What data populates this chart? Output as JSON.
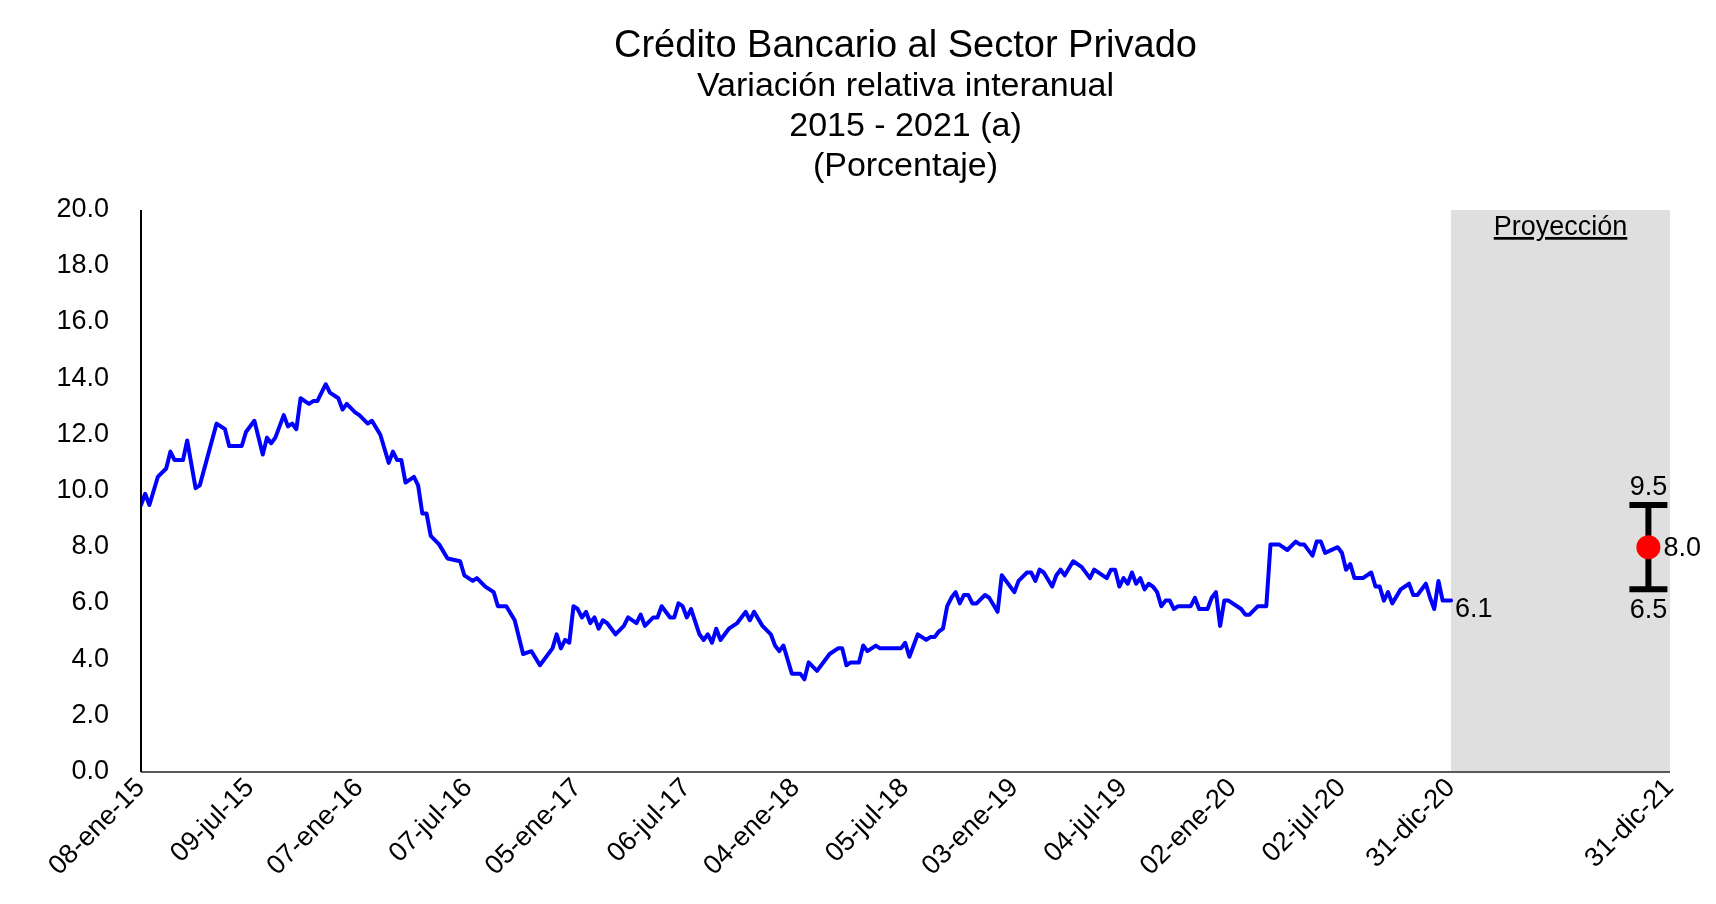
{
  "chart_data": {
    "type": "line",
    "title": "Crédito Bancario al Sector Privado",
    "subtitle": "Variación relativa interanual\n2015 - 2021 (a)\n(Porcentaje)",
    "xlim": [
      "2015-01-08",
      "2021-12-31"
    ],
    "xticks": [
      {
        "value": "2015-01-08",
        "label": "08-ene-15"
      },
      {
        "value": "2015-07-09",
        "label": "09-jul-15"
      },
      {
        "value": "2016-01-07",
        "label": "07-ene-16"
      },
      {
        "value": "2016-07-07",
        "label": "07-jul-16"
      },
      {
        "value": "2017-01-05",
        "label": "05-ene-17"
      },
      {
        "value": "2017-07-06",
        "label": "06-jul-17"
      },
      {
        "value": "2018-01-04",
        "label": "04-ene-18"
      },
      {
        "value": "2018-07-05",
        "label": "05-jul-18"
      },
      {
        "value": "2019-01-03",
        "label": "03-ene-19"
      },
      {
        "value": "2019-07-04",
        "label": "04-jul-19"
      },
      {
        "value": "2020-01-02",
        "label": "02-ene-20"
      },
      {
        "value": "2020-07-02",
        "label": "02-jul-20"
      },
      {
        "value": "2020-12-31",
        "label": "31-dic-20"
      },
      {
        "value": "2021-12-31",
        "label": "31-dic-21"
      }
    ],
    "ylim": [
      0,
      20
    ],
    "yticks": [
      {
        "value": 0,
        "label": "0.0"
      },
      {
        "value": 2,
        "label": "2.0"
      },
      {
        "value": 4,
        "label": "4.0"
      },
      {
        "value": 6,
        "label": "6.0"
      },
      {
        "value": 8,
        "label": "8.0"
      },
      {
        "value": 10,
        "label": "10.0"
      },
      {
        "value": 12,
        "label": "12.0"
      },
      {
        "value": 14,
        "label": "14.0"
      },
      {
        "value": 16,
        "label": "16.0"
      },
      {
        "value": 18,
        "label": "18.0"
      },
      {
        "value": 20,
        "label": "20.0"
      }
    ],
    "bands": [
      {
        "axis": "x",
        "from": "2020-12-31",
        "to": "2021-12-31",
        "label": "Proyección",
        "color": "#dfdfdf"
      }
    ],
    "series": [
      {
        "color": "#0000ff",
        "marker": "none",
        "x": [
          "2015-01-08",
          "2015-01-15",
          "2015-01-22",
          "2015-02-05",
          "2015-02-19",
          "2015-02-26",
          "2015-03-05",
          "2015-03-19",
          "2015-03-26",
          "2015-04-09",
          "2015-04-16",
          "2015-05-14",
          "2015-05-28",
          "2015-06-04",
          "2015-06-25",
          "2015-07-02",
          "2015-07-16",
          "2015-07-30",
          "2015-08-06",
          "2015-08-13",
          "2015-08-20",
          "2015-09-03",
          "2015-09-10",
          "2015-09-17",
          "2015-09-24",
          "2015-10-01",
          "2015-10-15",
          "2015-10-22",
          "2015-10-29",
          "2015-11-12",
          "2015-11-19",
          "2015-12-03",
          "2015-12-10",
          "2015-12-17",
          "2015-12-31",
          "2016-01-07",
          "2016-01-21",
          "2016-01-28",
          "2016-02-11",
          "2016-02-25",
          "2016-03-03",
          "2016-03-10",
          "2016-03-17",
          "2016-03-24",
          "2016-04-07",
          "2016-04-14",
          "2016-04-21",
          "2016-04-28",
          "2016-05-05",
          "2016-05-19",
          "2016-06-02",
          "2016-06-23",
          "2016-06-30",
          "2016-07-14",
          "2016-07-21",
          "2016-08-04",
          "2016-08-18",
          "2016-08-25",
          "2016-09-08",
          "2016-09-22",
          "2016-10-06",
          "2016-10-20",
          "2016-11-03",
          "2016-11-24",
          "2016-12-01",
          "2016-12-08",
          "2016-12-15",
          "2016-12-22",
          "2016-12-29",
          "2017-01-05",
          "2017-01-12",
          "2017-01-19",
          "2017-01-26",
          "2017-02-02",
          "2017-02-09",
          "2017-02-16",
          "2017-02-23",
          "2017-03-09",
          "2017-03-23",
          "2017-03-30",
          "2017-04-13",
          "2017-04-20",
          "2017-04-27",
          "2017-05-11",
          "2017-05-18",
          "2017-05-25",
          "2017-06-08",
          "2017-06-15",
          "2017-06-22",
          "2017-06-29",
          "2017-07-06",
          "2017-07-13",
          "2017-07-27",
          "2017-08-03",
          "2017-08-10",
          "2017-08-17",
          "2017-08-24",
          "2017-08-31",
          "2017-09-14",
          "2017-09-28",
          "2017-10-12",
          "2017-10-19",
          "2017-10-26",
          "2017-11-09",
          "2017-11-23",
          "2017-11-30",
          "2017-12-07",
          "2017-12-14",
          "2017-12-28",
          "2018-01-11",
          "2018-01-18",
          "2018-01-25",
          "2018-02-08",
          "2018-02-15",
          "2018-03-01",
          "2018-03-15",
          "2018-03-22",
          "2018-03-29",
          "2018-04-05",
          "2018-04-19",
          "2018-04-26",
          "2018-05-03",
          "2018-05-17",
          "2018-05-24",
          "2018-06-28",
          "2018-07-05",
          "2018-07-12",
          "2018-07-26",
          "2018-08-09",
          "2018-08-16",
          "2018-08-23",
          "2018-08-30",
          "2018-09-06",
          "2018-09-13",
          "2018-09-20",
          "2018-09-27",
          "2018-10-04",
          "2018-10-11",
          "2018-10-18",
          "2018-10-25",
          "2018-11-01",
          "2018-11-15",
          "2018-11-22",
          "2018-12-06",
          "2018-12-13",
          "2019-01-03",
          "2019-01-10",
          "2019-01-24",
          "2019-01-31",
          "2019-02-07",
          "2019-02-14",
          "2019-02-21",
          "2019-03-07",
          "2019-03-14",
          "2019-03-21",
          "2019-03-28",
          "2019-04-11",
          "2019-04-25",
          "2019-05-09",
          "2019-05-16",
          "2019-06-06",
          "2019-06-13",
          "2019-06-20",
          "2019-06-27",
          "2019-07-04",
          "2019-07-11",
          "2019-07-18",
          "2019-07-25",
          "2019-08-01",
          "2019-08-08",
          "2019-08-15",
          "2019-08-22",
          "2019-08-29",
          "2019-09-05",
          "2019-09-12",
          "2019-09-19",
          "2019-09-26",
          "2019-10-03",
          "2019-10-24",
          "2019-10-31",
          "2019-11-07",
          "2019-11-21",
          "2019-11-28",
          "2019-12-05",
          "2019-12-12",
          "2019-12-19",
          "2019-12-26",
          "2020-01-16",
          "2020-01-23",
          "2020-01-30",
          "2020-02-13",
          "2020-02-27",
          "2020-03-05",
          "2020-03-19",
          "2020-04-02",
          "2020-04-16",
          "2020-04-23",
          "2020-04-30",
          "2020-05-14",
          "2020-05-21",
          "2020-05-28",
          "2020-06-04",
          "2020-06-25",
          "2020-07-02",
          "2020-07-09",
          "2020-07-16",
          "2020-07-23",
          "2020-08-06",
          "2020-08-20",
          "2020-08-27",
          "2020-09-03",
          "2020-09-10",
          "2020-09-17",
          "2020-09-24",
          "2020-10-08",
          "2020-10-22",
          "2020-10-29",
          "2020-11-05",
          "2020-11-19",
          "2020-11-26",
          "2020-12-03",
          "2020-12-10",
          "2020-12-17",
          "2020-12-31"
        ],
        "values": [
          9.5,
          9.9,
          9.5,
          10.5,
          10.8,
          11.4,
          11.1,
          11.1,
          11.8,
          10.1,
          10.2,
          12.4,
          12.2,
          11.6,
          11.6,
          12.1,
          12.5,
          11.3,
          11.9,
          11.7,
          11.9,
          12.7,
          12.3,
          12.4,
          12.2,
          13.3,
          13.1,
          13.2,
          13.2,
          13.8,
          13.5,
          13.3,
          12.9,
          13.1,
          12.8,
          12.7,
          12.4,
          12.5,
          12.0,
          11.0,
          11.4,
          11.1,
          11.1,
          10.3,
          10.5,
          10.2,
          9.2,
          9.2,
          8.4,
          8.1,
          7.6,
          7.5,
          7.0,
          6.8,
          6.9,
          6.6,
          6.4,
          5.9,
          5.9,
          5.4,
          4.2,
          4.3,
          3.8,
          4.4,
          4.9,
          4.4,
          4.7,
          4.6,
          5.9,
          5.8,
          5.5,
          5.7,
          5.3,
          5.5,
          5.1,
          5.4,
          5.3,
          4.9,
          5.2,
          5.5,
          5.3,
          5.6,
          5.2,
          5.5,
          5.5,
          5.9,
          5.5,
          5.5,
          6.0,
          5.9,
          5.5,
          5.8,
          4.9,
          4.7,
          4.9,
          4.6,
          5.1,
          4.7,
          5.1,
          5.3,
          5.7,
          5.4,
          5.7,
          5.2,
          4.9,
          4.5,
          4.3,
          4.5,
          3.5,
          3.5,
          3.3,
          3.9,
          3.6,
          3.8,
          4.2,
          4.4,
          4.4,
          3.8,
          3.9,
          3.9,
          4.5,
          4.3,
          4.5,
          4.4,
          4.4,
          4.6,
          4.1,
          4.9,
          4.7,
          4.8,
          4.8,
          5.0,
          5.1,
          5.9,
          6.2,
          6.4,
          6.0,
          6.3,
          6.3,
          6.0,
          6.0,
          6.3,
          6.2,
          5.7,
          7.0,
          6.4,
          6.8,
          7.1,
          7.1,
          6.8,
          7.2,
          7.1,
          6.6,
          7.0,
          7.2,
          7.0,
          7.5,
          7.3,
          6.9,
          7.2,
          6.9,
          7.2,
          7.2,
          6.6,
          6.9,
          6.7,
          7.1,
          6.7,
          6.9,
          6.5,
          6.7,
          6.6,
          6.4,
          5.9,
          6.1,
          6.1,
          5.8,
          5.9,
          5.9,
          6.2,
          5.8,
          5.8,
          6.2,
          6.4,
          5.2,
          6.1,
          6.1,
          5.8,
          5.6,
          5.6,
          5.9,
          5.9,
          8.1,
          8.1,
          7.9,
          8.2,
          8.1,
          8.1,
          7.7,
          8.2,
          8.2,
          7.8,
          8.0,
          7.8,
          7.2,
          7.4,
          6.9,
          6.9,
          7.1,
          6.6,
          6.6,
          6.1,
          6.4,
          6.0,
          6.5,
          6.7,
          6.3,
          6.3,
          6.7,
          6.2,
          5.8,
          6.8,
          6.1,
          6.1
        ]
      },
      {
        "type": "scatter",
        "color": "#ff0000",
        "marker": "circle",
        "x": [
          "2021-11-25"
        ],
        "values": [
          8.0
        ],
        "errors": [
          [
            6.5,
            9.5
          ]
        ],
        "value_labels": [
          "8.0"
        ]
      }
    ],
    "annotations": [
      {
        "text": "6.1",
        "x": "2020-12-31",
        "y": 6.1
      },
      {
        "text": "9.5",
        "x": "2021-11-25",
        "y": 9.5
      },
      {
        "text": "6.5",
        "x": "2021-11-25",
        "y": 6.5
      }
    ]
  }
}
